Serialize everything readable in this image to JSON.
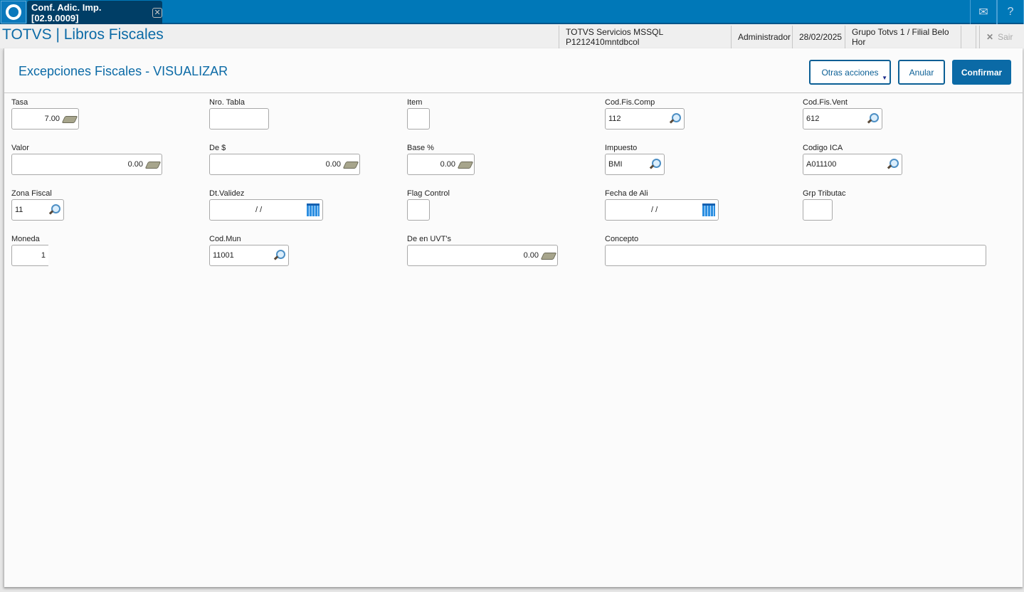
{
  "topbar": {
    "tab_label": "Conf. Adic. Imp. [02.9.0009]",
    "icons": [
      "totvs-logo-icon",
      "close-tab-icon",
      "mail-icon",
      "help-icon"
    ]
  },
  "header": {
    "app_title": "TOTVS | Libros Fiscales",
    "environment": "TOTVS Servicios MSSQL P1212410mntdbcol",
    "user": "Administrador",
    "date": "28/02/2025",
    "branch": "Grupo Totvs 1 / Filial Belo Hor",
    "exit_label": "Sair"
  },
  "page": {
    "title": "Excepciones Fiscales - VISUALIZAR",
    "buttons": {
      "other": "Otras acciones",
      "cancel": "Anular",
      "confirm": "Confirmar"
    }
  },
  "fields": [
    {
      "label": "Tasa",
      "value": "7.00",
      "icon": "money"
    },
    {
      "label": "Nro. Tabla",
      "value": "",
      "icon": ""
    },
    {
      "label": "Item",
      "value": "",
      "icon": ""
    },
    {
      "label": "Cod.Fis.Comp",
      "value": "112",
      "icon": "search"
    },
    {
      "label": "Cod.Fis.Vent",
      "value": "612",
      "icon": "search"
    },
    {
      "label": "Valor",
      "value": "0.00",
      "icon": "money"
    },
    {
      "label": "De $",
      "value": "0.00",
      "icon": "money"
    },
    {
      "label": "Base %",
      "value": "0.00",
      "icon": "money"
    },
    {
      "label": "Impuesto",
      "value": "BMI",
      "icon": "search"
    },
    {
      "label": "Codigo ICA",
      "value": "A011100",
      "icon": "search"
    },
    {
      "label": "Zona Fiscal",
      "value": "11",
      "icon": "search"
    },
    {
      "label": "Dt.Validez",
      "value": "/  /",
      "icon": "calendar"
    },
    {
      "label": "Flag Control",
      "value": "",
      "icon": ""
    },
    {
      "label": "Fecha de Ali",
      "value": "/  /",
      "icon": "calendar"
    },
    {
      "label": "Grp Tributac",
      "value": "",
      "icon": ""
    },
    {
      "label": "Moneda",
      "value": "1",
      "icon": ""
    },
    {
      "label": "Cod.Mun",
      "value": "11001",
      "icon": "search"
    },
    {
      "label": "De en UVT's",
      "value": "0.00",
      "icon": "money"
    },
    {
      "label": "Concepto",
      "value": "",
      "icon": ""
    }
  ]
}
